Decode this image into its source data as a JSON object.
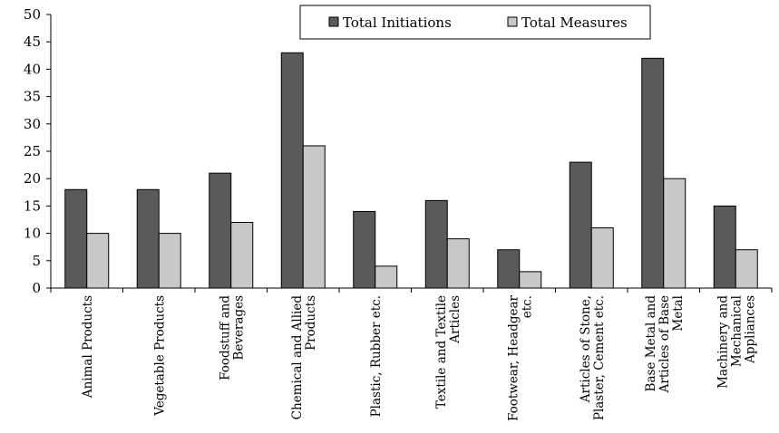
{
  "chart_data": {
    "type": "bar",
    "title": "",
    "xlabel": "",
    "ylabel": "",
    "ylim": [
      0,
      50
    ],
    "yticks": [
      0,
      5,
      10,
      15,
      20,
      25,
      30,
      35,
      40,
      45,
      50
    ],
    "grid": false,
    "legend_position": "top-right",
    "categories": [
      [
        "Animal Products"
      ],
      [
        "Vegetable Products"
      ],
      [
        "Foodstuff and",
        "Beverages"
      ],
      [
        "Chemical and Allied",
        "Products"
      ],
      [
        "Plastic, Rubber etc."
      ],
      [
        "Textile and Textile",
        "Articles"
      ],
      [
        "Footwear, Headgear",
        "etc."
      ],
      [
        "Articles of Stone,",
        "Plaster, Cement etc."
      ],
      [
        "Base Metal and",
        "Articles of Base",
        "Metal"
      ],
      [
        "Machinery and",
        "Mechanical",
        "Appliances"
      ]
    ],
    "series": [
      {
        "name": "Total Initiations",
        "color": "#5a5a5a",
        "values": [
          18,
          18,
          21,
          43,
          14,
          16,
          7,
          23,
          42,
          15
        ]
      },
      {
        "name": "Total Measures",
        "color": "#c8c8c8",
        "values": [
          10,
          10,
          12,
          26,
          4,
          9,
          3,
          11,
          20,
          7
        ]
      }
    ]
  }
}
